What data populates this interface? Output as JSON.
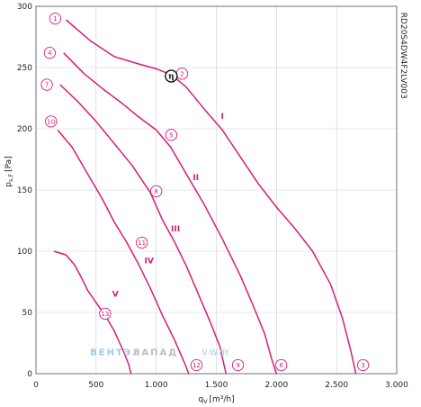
{
  "chart_data": {
    "type": "line",
    "xlabel": "q",
    "xlabel_sub": "V",
    "xlabel_unit": "[m³/h]",
    "ylabel": "p",
    "ylabel_sub": "s,F",
    "ylabel_unit": "[Pa]",
    "xlim": [
      0,
      3000
    ],
    "ylim": [
      0,
      300
    ],
    "x_ticks": [
      0,
      500,
      1000,
      1500,
      2000,
      2500,
      3000
    ],
    "x_tick_labels": [
      "0",
      "500",
      "1.000",
      "1.500",
      "2.000",
      "2.500",
      "3.000"
    ],
    "y_ticks": [
      0,
      50,
      100,
      150,
      200,
      250,
      300
    ],
    "y_tick_labels": [
      "0",
      "50",
      "100",
      "150",
      "200",
      "250",
      "300"
    ],
    "grid": true,
    "model": "RD20S4DW4F2LV003",
    "watermark": {
      "part1": "ВЕНТЭЛ",
      "part2": "ЗАПАД",
      "part3": "V-W.BY"
    },
    "series": [
      {
        "name": "I",
        "points": [
          [
            250,
            289
          ],
          [
            450,
            272
          ],
          [
            650,
            259
          ],
          [
            850,
            253
          ],
          [
            1000,
            249
          ],
          [
            1130,
            244
          ],
          [
            1250,
            234
          ],
          [
            1400,
            216
          ],
          [
            1550,
            199
          ],
          [
            1700,
            177
          ],
          [
            1850,
            155
          ],
          [
            2000,
            136
          ],
          [
            2150,
            119
          ],
          [
            2300,
            100
          ],
          [
            2450,
            73
          ],
          [
            2550,
            45
          ],
          [
            2620,
            18
          ],
          [
            2660,
            0
          ]
        ]
      },
      {
        "name": "II",
        "points": [
          [
            230,
            262
          ],
          [
            400,
            245
          ],
          [
            550,
            233
          ],
          [
            700,
            222
          ],
          [
            850,
            210
          ],
          [
            1000,
            199
          ],
          [
            1120,
            185
          ],
          [
            1250,
            163
          ],
          [
            1400,
            138
          ],
          [
            1550,
            110
          ],
          [
            1700,
            80
          ],
          [
            1800,
            57
          ],
          [
            1900,
            33
          ],
          [
            1960,
            12
          ],
          [
            2000,
            0
          ]
        ]
      },
      {
        "name": "III",
        "points": [
          [
            200,
            236
          ],
          [
            350,
            222
          ],
          [
            500,
            206
          ],
          [
            650,
            188
          ],
          [
            800,
            170
          ],
          [
            950,
            148
          ],
          [
            1050,
            126
          ],
          [
            1150,
            108
          ],
          [
            1250,
            88
          ],
          [
            1350,
            65
          ],
          [
            1450,
            42
          ],
          [
            1530,
            22
          ],
          [
            1580,
            0
          ]
        ]
      },
      {
        "name": "IV",
        "points": [
          [
            180,
            199
          ],
          [
            300,
            185
          ],
          [
            430,
            163
          ],
          [
            550,
            143
          ],
          [
            650,
            124
          ],
          [
            750,
            108
          ],
          [
            850,
            90
          ],
          [
            950,
            70
          ],
          [
            1050,
            48
          ],
          [
            1150,
            28
          ],
          [
            1230,
            10
          ],
          [
            1270,
            0
          ]
        ]
      },
      {
        "name": "V",
        "points": [
          [
            150,
            100
          ],
          [
            250,
            97
          ],
          [
            320,
            89
          ],
          [
            380,
            78
          ],
          [
            430,
            68
          ],
          [
            500,
            58
          ],
          [
            580,
            47
          ],
          [
            650,
            35
          ],
          [
            720,
            20
          ],
          [
            770,
            8
          ],
          [
            790,
            0
          ]
        ]
      }
    ],
    "markers": [
      {
        "label": "1",
        "x": 160,
        "y": 290
      },
      {
        "label": "2",
        "x": 1215,
        "y": 245
      },
      {
        "label": "3",
        "x": 2720,
        "y": 7
      },
      {
        "label": "4",
        "x": 115,
        "y": 262
      },
      {
        "label": "5",
        "x": 1125,
        "y": 195
      },
      {
        "label": "6",
        "x": 2040,
        "y": 7
      },
      {
        "label": "7",
        "x": 90,
        "y": 236
      },
      {
        "label": "8",
        "x": 1000,
        "y": 149
      },
      {
        "label": "9",
        "x": 1680,
        "y": 7
      },
      {
        "label": "10",
        "x": 125,
        "y": 206
      },
      {
        "label": "11",
        "x": 880,
        "y": 107
      },
      {
        "label": "12",
        "x": 1335,
        "y": 7
      },
      {
        "label": "13",
        "x": 575,
        "y": 49
      }
    ],
    "curve_labels": [
      {
        "label": "I",
        "x": 1550,
        "y": 208
      },
      {
        "label": "II",
        "x": 1330,
        "y": 158
      },
      {
        "label": "III",
        "x": 1160,
        "y": 116
      },
      {
        "label": "IV",
        "x": 940,
        "y": 90
      },
      {
        "label": "V",
        "x": 660,
        "y": 63
      }
    ],
    "eta_marker": {
      "label": "η",
      "x": 1125,
      "y": 243
    }
  }
}
